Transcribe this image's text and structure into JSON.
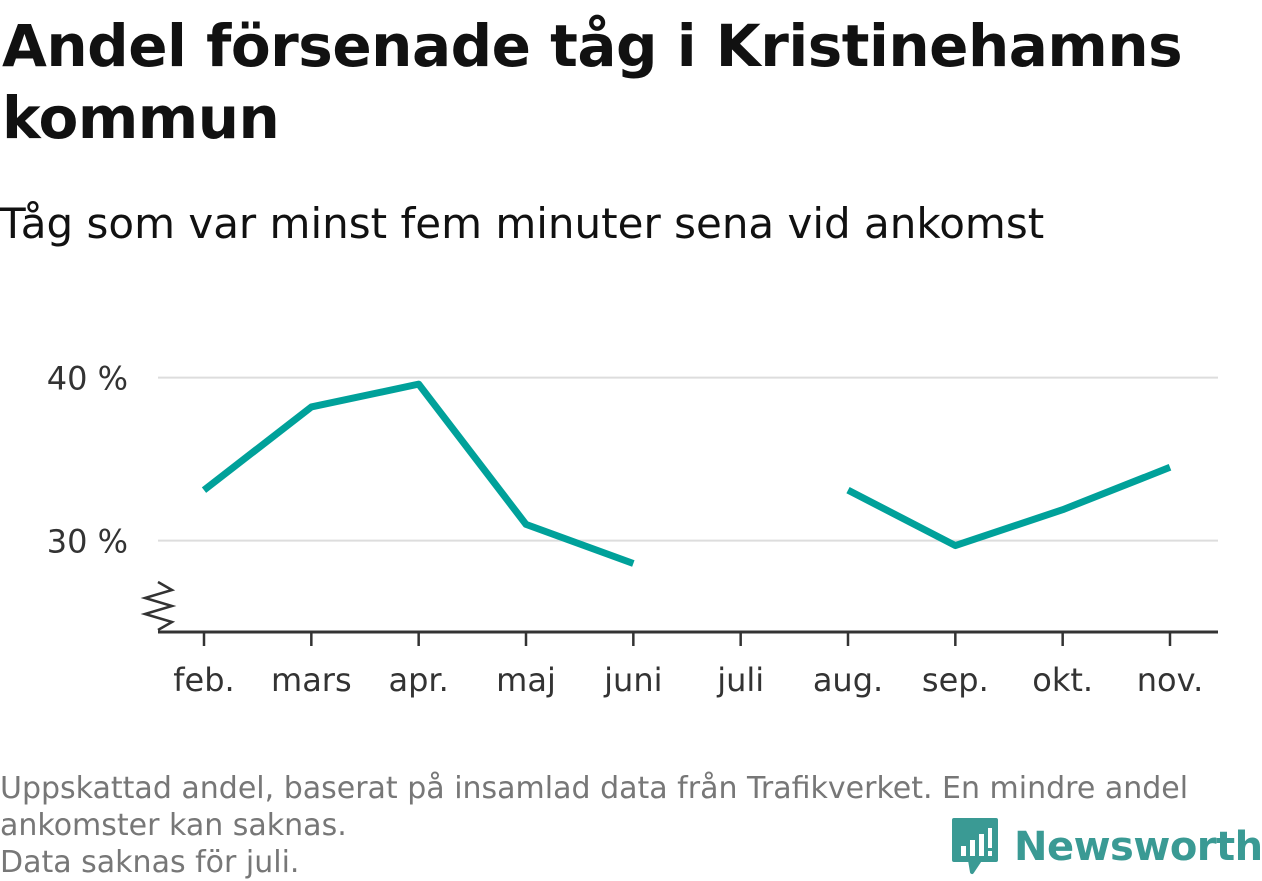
{
  "title": "Andel försenade tåg i Kristinehamns kommun",
  "subtitle": "Tåg som var minst fem minuter sena vid ankomst",
  "chart_data": {
    "type": "line",
    "title": "Andel försenade tåg i Kristinehamns kommun",
    "subtitle": "Tåg som var minst fem minuter sena vid ankomst",
    "categories": [
      "feb.",
      "mars",
      "apr.",
      "maj",
      "juni",
      "juli",
      "aug.",
      "sep.",
      "okt.",
      "nov."
    ],
    "series": [
      {
        "values": [
          33.1,
          38.2,
          39.6,
          31.0,
          28.6,
          null,
          33.1,
          29.7,
          31.9,
          34.5
        ]
      }
    ],
    "yticks": [
      30,
      40
    ],
    "ytick_labels": [
      "30 %",
      "40 %"
    ],
    "ylim": [
      24.4,
      42
    ],
    "y_axis_break": true,
    "grid": true,
    "line_color": "#00a19a"
  },
  "caption": {
    "line1": "Uppskattad andel, baserat på insamlad data från Trafikverket. En mindre andel",
    "line2": "ankomster kan saknas.",
    "line3": "Data saknas för juli."
  },
  "logo": {
    "text": "Newsworthy",
    "icon": "newsworthy-chat-bars-icon",
    "color": "#3a9a94"
  }
}
